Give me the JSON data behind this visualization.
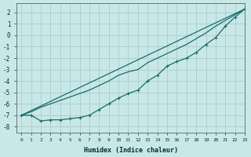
{
  "title": "",
  "xlabel": "Humidex (Indice chaleur)",
  "ylabel": "",
  "background_color": "#c8e8e8",
  "grid_color": "#afd0d0",
  "line_color": "#1a6b6b",
  "xlim": [
    -0.5,
    23
  ],
  "ylim": [
    -8.5,
    2.8
  ],
  "yticks": [
    2,
    1,
    0,
    -1,
    -2,
    -3,
    -4,
    -5,
    -6,
    -7,
    -8
  ],
  "xticks": [
    0,
    1,
    2,
    3,
    4,
    5,
    6,
    7,
    8,
    9,
    10,
    11,
    12,
    13,
    14,
    15,
    16,
    17,
    18,
    19,
    20,
    21,
    22,
    23
  ],
  "straight_line": [
    [
      0,
      -7.0
    ],
    [
      23,
      2.3
    ]
  ],
  "upper_smooth_line": [
    [
      0,
      -7.0
    ],
    [
      1,
      -6.7
    ],
    [
      2,
      -6.3
    ],
    [
      3,
      -6.0
    ],
    [
      4,
      -5.7
    ],
    [
      5,
      -5.4
    ],
    [
      6,
      -5.1
    ],
    [
      7,
      -4.8
    ],
    [
      8,
      -4.4
    ],
    [
      9,
      -4.0
    ],
    [
      10,
      -3.5
    ],
    [
      11,
      -3.2
    ],
    [
      12,
      -3.0
    ],
    [
      13,
      -2.4
    ],
    [
      14,
      -2.0
    ],
    [
      15,
      -1.6
    ],
    [
      16,
      -1.2
    ],
    [
      17,
      -0.8
    ],
    [
      18,
      -0.3
    ],
    [
      19,
      0.2
    ],
    [
      20,
      0.8
    ],
    [
      21,
      1.3
    ],
    [
      22,
      1.8
    ],
    [
      23,
      2.3
    ]
  ],
  "marker_line": [
    [
      0,
      -7.0
    ],
    [
      1,
      -7.0
    ],
    [
      2,
      -7.5
    ],
    [
      3,
      -7.4
    ],
    [
      4,
      -7.4
    ],
    [
      5,
      -7.3
    ],
    [
      6,
      -7.2
    ],
    [
      7,
      -7.0
    ],
    [
      8,
      -6.5
    ],
    [
      9,
      -6.0
    ],
    [
      10,
      -5.5
    ],
    [
      11,
      -5.1
    ],
    [
      12,
      -4.8
    ],
    [
      13,
      -4.0
    ],
    [
      14,
      -3.5
    ],
    [
      15,
      -2.7
    ],
    [
      16,
      -2.3
    ],
    [
      17,
      -2.0
    ],
    [
      18,
      -1.5
    ],
    [
      19,
      -0.8
    ],
    [
      20,
      -0.2
    ],
    [
      21,
      0.8
    ],
    [
      22,
      1.6
    ],
    [
      23,
      2.3
    ]
  ]
}
